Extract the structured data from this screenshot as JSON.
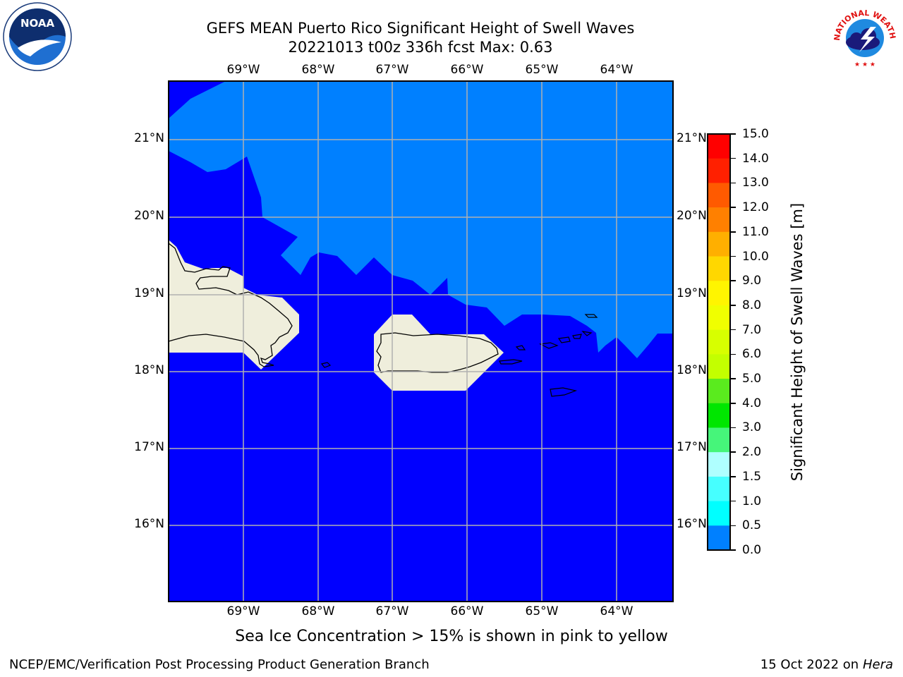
{
  "title": {
    "line1": "GEFS MEAN Puerto Rico Significant Height of Swell Waves",
    "line2": "20221013 t00z 336h fcst   Max: 0.63"
  },
  "map": {
    "lon_labels": [
      "69°W",
      "68°W",
      "67°W",
      "66°W",
      "65°W",
      "64°W"
    ],
    "lat_labels": [
      "21°N",
      "20°N",
      "19°N",
      "18°N",
      "17°N",
      "16°N"
    ],
    "colors": {
      "low": "#0000ff",
      "mid": "#0080ff",
      "land": "#efeedc",
      "grid": "#b0b0b0"
    }
  },
  "colorbar": {
    "label": "Significant Height of Swell Waves [m]",
    "ticks": [
      "15.0",
      "14.0",
      "13.0",
      "12.0",
      "11.0",
      "10.0",
      "9.0",
      "8.0",
      "7.0",
      "6.0",
      "5.0",
      "4.0",
      "3.0",
      "2.0",
      "1.5",
      "1.0",
      "0.5",
      "0.0"
    ],
    "colors": [
      "#ff0000",
      "#ff2000",
      "#ff5a00",
      "#ff8000",
      "#ffaf00",
      "#ffd700",
      "#fff500",
      "#f0ff00",
      "#d7ff00",
      "#c3ff00",
      "#5aeb1e",
      "#00e600",
      "#46f57a",
      "#afffff",
      "#46ffff",
      "#00ffff",
      "#0080ff",
      "#0000ff"
    ]
  },
  "logos": {
    "left": "NOAA",
    "right": "NATIONAL WEATHER SERVICE"
  },
  "footer": {
    "note": "Sea Ice Concentration > 15% is shown in pink to yellow",
    "credit": "NCEP/EMC/Verification Post Processing Product Generation Branch",
    "date": "15 Oct 2022 on",
    "host": "Hera"
  }
}
